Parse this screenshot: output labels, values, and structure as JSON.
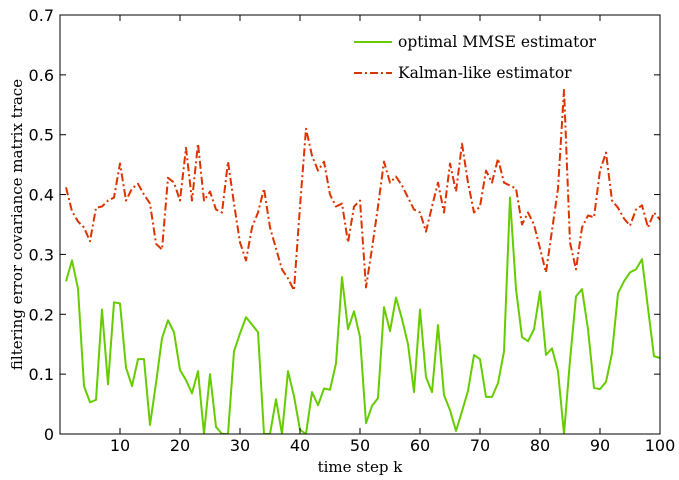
{
  "chart_data": {
    "type": "line",
    "title": "",
    "xlabel": "time step k",
    "ylabel": "filtering error covariance matrix trace",
    "xlim": [
      0,
      100
    ],
    "ylim": [
      0,
      0.7
    ],
    "xticks": [
      "10",
      "20",
      "30",
      "40",
      "50",
      "60",
      "70",
      "80",
      "90",
      "100"
    ],
    "yticks": [
      "0",
      "0.1",
      "0.2",
      "0.3",
      "0.4",
      "0.5",
      "0.6",
      "0.7"
    ],
    "grid": false,
    "legend_position": "top-right",
    "series": [
      {
        "name": "optimal MMSE estimator",
        "color": "#66cc00",
        "style": "solid",
        "x": [
          1,
          2,
          3,
          4,
          5,
          6,
          7,
          8,
          9,
          10,
          11,
          12,
          13,
          14,
          15,
          16,
          17,
          18,
          19,
          20,
          21,
          22,
          23,
          24,
          25,
          26,
          27,
          28,
          29,
          30,
          31,
          32,
          33,
          34,
          35,
          36,
          37,
          38,
          39,
          40,
          41,
          42,
          43,
          44,
          45,
          46,
          47,
          48,
          49,
          50,
          51,
          52,
          53,
          54,
          55,
          56,
          57,
          58,
          59,
          60,
          61,
          62,
          63,
          64,
          65,
          66,
          67,
          68,
          69,
          70,
          71,
          72,
          73,
          74,
          75,
          76,
          77,
          78,
          79,
          80,
          81,
          82,
          83,
          84,
          85,
          86,
          87,
          88,
          89,
          90,
          91,
          92,
          93,
          94,
          95,
          96,
          97,
          98,
          99,
          100
        ],
        "values": [
          0.255,
          0.29,
          0.243,
          0.08,
          0.053,
          0.057,
          0.208,
          0.083,
          0.22,
          0.218,
          0.111,
          0.08,
          0.125,
          0.125,
          0.015,
          0.085,
          0.16,
          0.19,
          0.17,
          0.107,
          0.09,
          0.068,
          0.105,
          0.0,
          0.1,
          0.012,
          0.0,
          0.0,
          0.138,
          0.168,
          0.195,
          0.183,
          0.17,
          0.0,
          0.0,
          0.058,
          0.0,
          0.105,
          0.063,
          0.007,
          0.0,
          0.07,
          0.048,
          0.076,
          0.074,
          0.118,
          0.262,
          0.175,
          0.205,
          0.162,
          0.018,
          0.047,
          0.06,
          0.212,
          0.172,
          0.228,
          0.192,
          0.15,
          0.07,
          0.208,
          0.095,
          0.07,
          0.182,
          0.065,
          0.04,
          0.005,
          0.038,
          0.072,
          0.132,
          0.125,
          0.062,
          0.062,
          0.085,
          0.138,
          0.395,
          0.242,
          0.162,
          0.155,
          0.175,
          0.238,
          0.132,
          0.143,
          0.105,
          0.0,
          0.123,
          0.23,
          0.242,
          0.175,
          0.077,
          0.075,
          0.087,
          0.135,
          0.235,
          0.255,
          0.27,
          0.275,
          0.292,
          0.21,
          0.13,
          0.127
        ]
      },
      {
        "name": "Kalman-like estimator",
        "color": "#dd3300",
        "style": "dash-dot",
        "x": [
          1,
          2,
          3,
          4,
          5,
          6,
          7,
          8,
          9,
          10,
          11,
          12,
          13,
          14,
          15,
          16,
          17,
          18,
          19,
          20,
          21,
          22,
          23,
          24,
          25,
          26,
          27,
          28,
          29,
          30,
          31,
          32,
          33,
          34,
          35,
          36,
          37,
          38,
          39,
          40,
          41,
          42,
          43,
          44,
          45,
          46,
          47,
          48,
          49,
          50,
          51,
          52,
          53,
          54,
          55,
          56,
          57,
          58,
          59,
          60,
          61,
          62,
          63,
          64,
          65,
          66,
          67,
          68,
          69,
          70,
          71,
          72,
          73,
          74,
          75,
          76,
          77,
          78,
          79,
          80,
          81,
          82,
          83,
          84,
          85,
          86,
          87,
          88,
          89,
          90,
          91,
          92,
          93,
          94,
          95,
          96,
          97,
          98,
          99,
          100
        ],
        "values": [
          0.412,
          0.372,
          0.355,
          0.345,
          0.322,
          0.378,
          0.38,
          0.39,
          0.395,
          0.452,
          0.39,
          0.41,
          0.418,
          0.4,
          0.385,
          0.318,
          0.308,
          0.428,
          0.42,
          0.39,
          0.478,
          0.39,
          0.485,
          0.39,
          0.405,
          0.375,
          0.37,
          0.455,
          0.385,
          0.32,
          0.29,
          0.345,
          0.37,
          0.41,
          0.345,
          0.31,
          0.275,
          0.26,
          0.24,
          0.38,
          0.51,
          0.465,
          0.44,
          0.455,
          0.4,
          0.38,
          0.385,
          0.32,
          0.38,
          0.39,
          0.245,
          0.31,
          0.38,
          0.455,
          0.42,
          0.43,
          0.415,
          0.395,
          0.375,
          0.37,
          0.338,
          0.38,
          0.42,
          0.37,
          0.452,
          0.405,
          0.485,
          0.42,
          0.37,
          0.38,
          0.44,
          0.42,
          0.46,
          0.42,
          0.415,
          0.41,
          0.35,
          0.37,
          0.35,
          0.31,
          0.27,
          0.34,
          0.41,
          0.575,
          0.32,
          0.275,
          0.345,
          0.365,
          0.362,
          0.44,
          0.47,
          0.39,
          0.378,
          0.36,
          0.348,
          0.375,
          0.382,
          0.345,
          0.37,
          0.358
        ]
      }
    ]
  }
}
